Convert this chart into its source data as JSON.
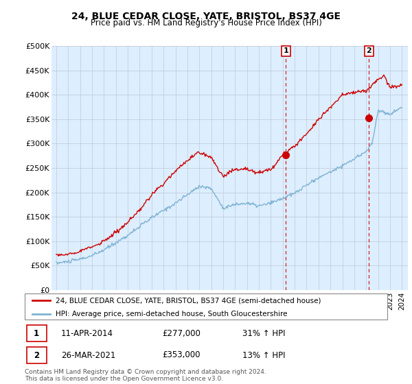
{
  "title": "24, BLUE CEDAR CLOSE, YATE, BRISTOL, BS37 4GE",
  "subtitle": "Price paid vs. HM Land Registry's House Price Index (HPI)",
  "ylabel_ticks": [
    "£0",
    "£50K",
    "£100K",
    "£150K",
    "£200K",
    "£250K",
    "£300K",
    "£350K",
    "£400K",
    "£450K",
    "£500K"
  ],
  "ytick_values": [
    0,
    50000,
    100000,
    150000,
    200000,
    250000,
    300000,
    350000,
    400000,
    450000,
    500000
  ],
  "ylim": [
    0,
    500000
  ],
  "sale1_date": "11-APR-2014",
  "sale1_price": 277000,
  "sale1_pct": "31%",
  "sale1_x": 2014.27,
  "sale2_date": "26-MAR-2021",
  "sale2_price": 353000,
  "sale2_pct": "13%",
  "sale2_x": 2021.23,
  "legend_line1": "24, BLUE CEDAR CLOSE, YATE, BRISTOL, BS37 4GE (semi-detached house)",
  "legend_line2": "HPI: Average price, semi-detached house, South Gloucestershire",
  "footnote": "Contains HM Land Registry data © Crown copyright and database right 2024.\nThis data is licensed under the Open Government Licence v3.0.",
  "line_color_red": "#cc0000",
  "line_color_blue": "#7fb3d3",
  "plot_bg": "#ddeeff",
  "grid_color": "#c0c8d8"
}
